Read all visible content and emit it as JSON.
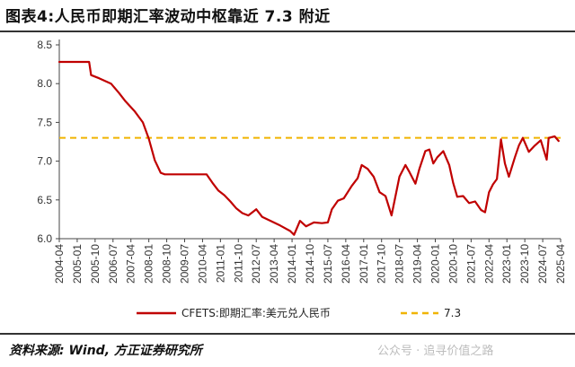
{
  "title": "图表4:人民币即期汇率波动中枢靠近 7.3 附近",
  "source": "资料来源: Wind, 方正证券研究所",
  "watermark": "公众号 · 追寻价值之路",
  "colors": {
    "series": "#c00000",
    "reference": "#f0b400"
  },
  "chart_data": {
    "type": "line",
    "title": "",
    "xlabel": "",
    "ylabel": "",
    "xlim": [
      "2004-04",
      "2025-04"
    ],
    "ylim": [
      6.0,
      8.5
    ],
    "y_ticks": [
      "6.0",
      "6.5",
      "7.0",
      "7.5",
      "8.0",
      "8.5"
    ],
    "x_ticks": [
      "2004-04",
      "2005-01",
      "2005-10",
      "2006-07",
      "2007-04",
      "2008-01",
      "2008-10",
      "2009-07",
      "2010-04",
      "2011-01",
      "2011-10",
      "2012-07",
      "2013-04",
      "2014-01",
      "2014-10",
      "2015-07",
      "2016-04",
      "2017-01",
      "2017-10",
      "2018-07",
      "2019-04",
      "2020-01",
      "2020-10",
      "2021-07",
      "2022-04",
      "2023-01",
      "2023-10",
      "2024-07",
      "2025-04"
    ],
    "grid": false,
    "legend_position": "bottom",
    "series": [
      {
        "name": "CFETS:即期汇率:美元兑人民币",
        "x": [
          "2004-04",
          "2005-07",
          "2005-08",
          "2005-12",
          "2006-06",
          "2006-10",
          "2007-01",
          "2007-06",
          "2007-10",
          "2008-01",
          "2008-04",
          "2008-07",
          "2008-09",
          "2008-12",
          "2009-06",
          "2010-01",
          "2010-06",
          "2010-09",
          "2010-12",
          "2011-03",
          "2011-06",
          "2011-09",
          "2011-12",
          "2012-03",
          "2012-07",
          "2012-10",
          "2013-03",
          "2013-07",
          "2013-12",
          "2014-02",
          "2014-05",
          "2014-08",
          "2014-12",
          "2015-04",
          "2015-07",
          "2015-09",
          "2015-12",
          "2016-03",
          "2016-07",
          "2016-10",
          "2016-12",
          "2017-03",
          "2017-06",
          "2017-09",
          "2017-12",
          "2018-03",
          "2018-07",
          "2018-10",
          "2018-12",
          "2019-03",
          "2019-05",
          "2019-08",
          "2019-10",
          "2019-12",
          "2020-02",
          "2020-05",
          "2020-08",
          "2020-10",
          "2020-12",
          "2021-03",
          "2021-06",
          "2021-09",
          "2021-12",
          "2022-02",
          "2022-04",
          "2022-06",
          "2022-08",
          "2022-10",
          "2022-12",
          "2023-02",
          "2023-05",
          "2023-07",
          "2023-09",
          "2023-12",
          "2024-03",
          "2024-06",
          "2024-09",
          "2024-10",
          "2025-01",
          "2025-03"
        ],
        "y": [
          8.28,
          8.28,
          8.11,
          8.07,
          8.0,
          7.88,
          7.78,
          7.64,
          7.5,
          7.29,
          7.01,
          6.85,
          6.83,
          6.83,
          6.83,
          6.83,
          6.83,
          6.72,
          6.62,
          6.56,
          6.48,
          6.39,
          6.33,
          6.3,
          6.38,
          6.28,
          6.22,
          6.17,
          6.1,
          6.05,
          6.23,
          6.16,
          6.21,
          6.2,
          6.21,
          6.38,
          6.49,
          6.52,
          6.68,
          6.78,
          6.95,
          6.9,
          6.8,
          6.6,
          6.55,
          6.3,
          6.8,
          6.95,
          6.86,
          6.71,
          6.9,
          7.13,
          7.15,
          6.97,
          7.05,
          7.13,
          6.95,
          6.72,
          6.54,
          6.55,
          6.46,
          6.48,
          6.37,
          6.34,
          6.6,
          6.7,
          6.77,
          7.28,
          6.97,
          6.8,
          7.05,
          7.2,
          7.3,
          7.12,
          7.2,
          7.27,
          7.02,
          7.3,
          7.32,
          7.26
        ]
      },
      {
        "name": "7.3",
        "x": [
          "2004-04",
          "2025-04"
        ],
        "y": [
          7.3,
          7.3
        ]
      }
    ]
  }
}
